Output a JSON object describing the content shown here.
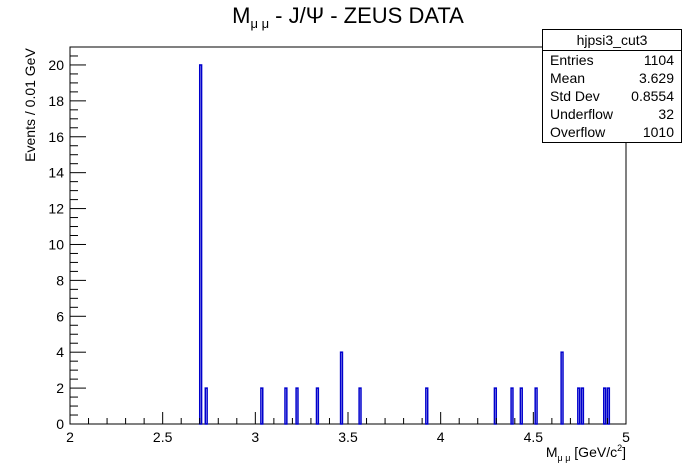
{
  "chart_data": {
    "type": "bar",
    "title_main": "M",
    "title_sub": "μ μ",
    "title_rest": " - J/Ψ - ZEUS DATA",
    "ylabel": "Events / 0.01 GeV",
    "xlabel_main": "M",
    "xlabel_sub": "μ μ",
    "xlabel_rest": " [GeV/c",
    "xlabel_sup": "2",
    "xlabel_end": "]",
    "xlim": [
      2,
      5
    ],
    "ylim": [
      0,
      21
    ],
    "xticks": [
      "2",
      "2.5",
      "3",
      "3.5",
      "4",
      "4.5",
      "5"
    ],
    "yticks": [
      "0",
      "2",
      "4",
      "6",
      "8",
      "10",
      "12",
      "14",
      "16",
      "18",
      "20"
    ],
    "bin_width": 0.01,
    "bins": [
      {
        "x": 2.7,
        "y": 20
      },
      {
        "x": 2.73,
        "y": 2
      },
      {
        "x": 3.03,
        "y": 2
      },
      {
        "x": 3.16,
        "y": 2
      },
      {
        "x": 3.22,
        "y": 2
      },
      {
        "x": 3.33,
        "y": 2
      },
      {
        "x": 3.46,
        "y": 4
      },
      {
        "x": 3.56,
        "y": 2
      },
      {
        "x": 3.92,
        "y": 2
      },
      {
        "x": 4.29,
        "y": 2
      },
      {
        "x": 4.38,
        "y": 2
      },
      {
        "x": 4.43,
        "y": 2
      },
      {
        "x": 4.51,
        "y": 2
      },
      {
        "x": 4.65,
        "y": 4
      },
      {
        "x": 4.74,
        "y": 2
      },
      {
        "x": 4.76,
        "y": 2
      },
      {
        "x": 4.88,
        "y": 2
      },
      {
        "x": 4.9,
        "y": 2
      }
    ],
    "colors": {
      "line": "#0000cc",
      "axis": "#000000"
    }
  },
  "stats": {
    "name": "hjpsi3_cut3",
    "rows": [
      {
        "label": "Entries",
        "value": "1104"
      },
      {
        "label": "Mean",
        "value": "3.629"
      },
      {
        "label": "Std Dev",
        "value": "0.8554"
      },
      {
        "label": "Underflow",
        "value": "32"
      },
      {
        "label": "Overflow",
        "value": "1010"
      }
    ]
  }
}
